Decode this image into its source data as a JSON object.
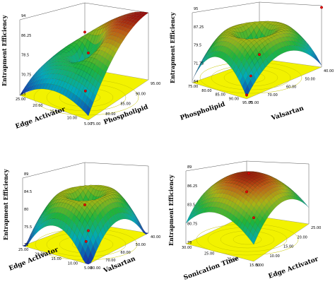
{
  "chart_data": [
    {
      "type": "surface3d",
      "zlabel": "Entrapment Efficiency",
      "xlabel": "Edge Activator",
      "ylabel": "Phospholipid",
      "ztick_labels": [
        "63",
        "70.75",
        "78.5",
        "86.25",
        "94"
      ],
      "xtick_labels": [
        "5.00",
        "10.00",
        "15.00",
        "20.00",
        "25.00"
      ],
      "ytick_labels": [
        "75.00",
        "80.00",
        "85.00",
        "90.00",
        "95.00"
      ],
      "zlim": [
        63,
        94
      ],
      "design_points": [
        {
          "x": 15,
          "y": 85,
          "z": 63
        },
        {
          "x": 25,
          "y": 95,
          "z": 94
        },
        {
          "x": 5,
          "y": 75,
          "z": 79
        }
      ]
    },
    {
      "type": "surface3d",
      "zlabel": "Entrapment Efficiency",
      "xlabel": "Phospholipid",
      "ylabel": "Valsartan",
      "ztick_labels": [
        "64",
        "71.75",
        "79.5",
        "87.25",
        "95"
      ],
      "xtick_labels": [
        "95.00",
        "90.00",
        "85.00",
        "80.00",
        "75.00"
      ],
      "ytick_labels": [
        "75.00",
        "70.00",
        "60.00",
        "50.00",
        "40.00"
      ],
      "zlim": [
        64,
        95
      ],
      "design_points": [
        {
          "x": 85,
          "y": 60,
          "z": 64
        },
        {
          "x": 95,
          "y": 40,
          "z": 95
        },
        {
          "x": 75,
          "y": 40,
          "z": 66
        },
        {
          "x": 95,
          "y": 75,
          "z": 66
        }
      ]
    },
    {
      "type": "surface3d",
      "zlabel": "Entrapment Efficiency",
      "xlabel": "Edge Activator",
      "ylabel": "Valsartan",
      "ztick_labels": [
        "71",
        "75.5",
        "80",
        "84.5",
        "89"
      ],
      "xtick_labels": [
        "5.00",
        "10.00",
        "15.00",
        "20.00",
        "25.00"
      ],
      "ytick_labels": [
        "80.00",
        "70.00",
        "60.00",
        "50.00",
        "40.00"
      ],
      "zlim": [
        71,
        89
      ],
      "design_points": [
        {
          "x": 15,
          "y": 60,
          "z": 71
        },
        {
          "x": 25,
          "y": 40,
          "z": 80
        },
        {
          "x": 5,
          "y": 80,
          "z": 76
        }
      ]
    },
    {
      "type": "surface3d",
      "zlabel": "Entrapment Efficiency",
      "xlabel": "Sonication Time",
      "ylabel": "Edge Activator",
      "ztick_labels": [
        "78",
        "80.75",
        "83.5",
        "86.25",
        "89"
      ],
      "xtick_labels": [
        "15.00",
        "20.00",
        "25.00",
        "30.00"
      ],
      "ytick_labels": [
        "5.00",
        "10.00",
        "15.00",
        "20.00",
        "25.00"
      ],
      "zlim": [
        78,
        89
      ],
      "design_points": [
        {
          "x": 15,
          "y": 5,
          "z": 82
        },
        {
          "x": 30,
          "y": 25,
          "z": 86
        },
        {
          "x": 22.5,
          "y": 15,
          "z": 89
        }
      ]
    }
  ]
}
